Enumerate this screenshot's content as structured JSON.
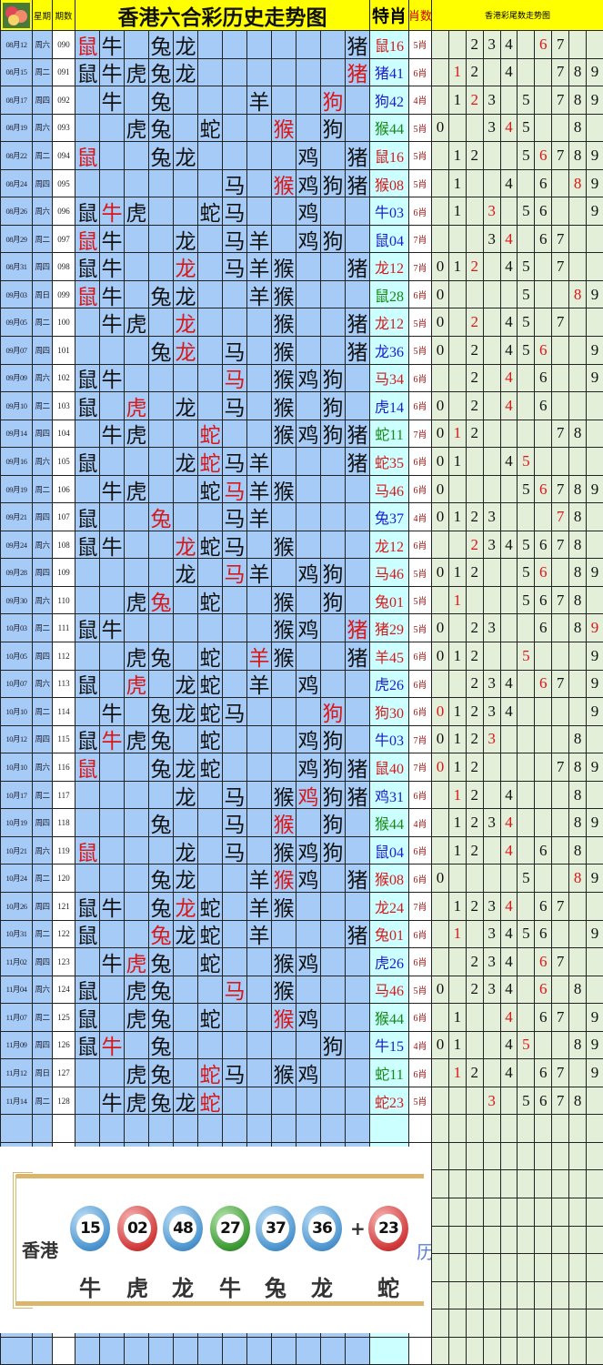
{
  "header": {
    "weekday_label": "星期",
    "period_label": "期数",
    "title": "香港六合彩历史走势图",
    "special_label": "特肖",
    "count_label": "肖数",
    "tails_title": "香港彩尾数走势图"
  },
  "zodiac_order": [
    "鼠",
    "牛",
    "虎",
    "兔",
    "龙",
    "蛇",
    "马",
    "羊",
    "猴",
    "鸡",
    "狗",
    "猪"
  ],
  "colors": {
    "red": "#d81818",
    "blue": "#1a1ad0",
    "green": "#118a11",
    "header": "#ffff00",
    "zodiac_bg": "#a6cbf6",
    "tails_bg": "#e3efd9"
  },
  "rows": [
    {
      "date": "08月12",
      "weekday": "周六",
      "period": "090",
      "zodiacs": [
        "鼠",
        "牛",
        "兔",
        "龙",
        "猪"
      ],
      "special": "鼠16",
      "color": "red",
      "count": "5肖",
      "tails": [
        2,
        3,
        4,
        6,
        7
      ]
    },
    {
      "date": "08月15",
      "weekday": "周二",
      "period": "091",
      "zodiacs": [
        "鼠",
        "牛",
        "虎",
        "兔",
        "龙",
        "猪"
      ],
      "special": "猪41",
      "color": "blue",
      "count": "6肖",
      "tails": [
        1,
        2,
        4,
        7,
        8,
        9
      ]
    },
    {
      "date": "08月17",
      "weekday": "周四",
      "period": "092",
      "zodiacs": [
        "牛",
        "兔",
        "羊",
        "狗"
      ],
      "special": "狗42",
      "color": "blue",
      "count": "4肖",
      "tails": [
        1,
        2,
        3,
        5,
        7,
        8,
        9
      ]
    },
    {
      "date": "08月19",
      "weekday": "周六",
      "period": "093",
      "zodiacs": [
        "虎",
        "兔",
        "蛇",
        "猴",
        "狗"
      ],
      "special": "猴44",
      "color": "green",
      "count": "5肖",
      "tails": [
        0,
        3,
        4,
        5,
        8
      ]
    },
    {
      "date": "08月22",
      "weekday": "周二",
      "period": "094",
      "zodiacs": [
        "鼠",
        "兔",
        "龙",
        "鸡",
        "猪"
      ],
      "special": "鼠16",
      "color": "red",
      "count": "5肖",
      "tails": [
        1,
        2,
        5,
        6,
        7,
        8,
        9
      ]
    },
    {
      "date": "08月24",
      "weekday": "周四",
      "period": "095",
      "zodiacs": [
        "马",
        "猴",
        "鸡",
        "狗",
        "猪"
      ],
      "special": "猴08",
      "color": "red",
      "count": "5肖",
      "tails": [
        1,
        4,
        6,
        8,
        9
      ]
    },
    {
      "date": "08月26",
      "weekday": "周六",
      "period": "096",
      "zodiacs": [
        "鼠",
        "牛",
        "虎",
        "蛇",
        "马",
        "鸡"
      ],
      "special": "牛03",
      "color": "blue",
      "count": "6肖",
      "tails": [
        1,
        3,
        5,
        6,
        9
      ]
    },
    {
      "date": "08月29",
      "weekday": "周二",
      "period": "097",
      "zodiacs": [
        "鼠",
        "牛",
        "龙",
        "马",
        "羊",
        "鸡",
        "狗"
      ],
      "special": "鼠04",
      "color": "blue",
      "count": "7肖",
      "tails": [
        3,
        4,
        6,
        7
      ]
    },
    {
      "date": "08月31",
      "weekday": "周四",
      "period": "098",
      "zodiacs": [
        "鼠",
        "牛",
        "龙",
        "马",
        "羊",
        "猴",
        "猪"
      ],
      "special": "龙12",
      "color": "red",
      "count": "7肖",
      "tails": [
        0,
        1,
        2,
        4,
        5,
        7
      ]
    },
    {
      "date": "09月03",
      "weekday": "周日",
      "period": "099",
      "zodiacs": [
        "鼠",
        "牛",
        "兔",
        "龙",
        "羊",
        "猴"
      ],
      "special": "鼠28",
      "color": "green",
      "count": "6肖",
      "tails": [
        0,
        5,
        8,
        9
      ]
    },
    {
      "date": "09月05",
      "weekday": "周二",
      "period": "100",
      "zodiacs": [
        "牛",
        "虎",
        "龙",
        "猴",
        "猪"
      ],
      "special": "龙12",
      "color": "red",
      "count": "5肖",
      "tails": [
        0,
        2,
        4,
        5,
        7
      ]
    },
    {
      "date": "09月07",
      "weekday": "周四",
      "period": "101",
      "zodiacs": [
        "兔",
        "龙",
        "马",
        "猴",
        "猪"
      ],
      "special": "龙36",
      "color": "blue",
      "count": "5肖",
      "tails": [
        0,
        2,
        4,
        5,
        6,
        9
      ]
    },
    {
      "date": "09月09",
      "weekday": "周六",
      "period": "102",
      "zodiacs": [
        "鼠",
        "牛",
        "马",
        "猴",
        "鸡",
        "狗"
      ],
      "special": "马34",
      "color": "red",
      "count": "6肖",
      "tails": [
        2,
        4,
        6,
        9
      ]
    },
    {
      "date": "09月10",
      "weekday": "周二",
      "period": "103",
      "zodiacs": [
        "鼠",
        "虎",
        "龙",
        "马",
        "猴",
        "狗"
      ],
      "special": "虎14",
      "color": "blue",
      "count": "6肖",
      "tails": [
        0,
        2,
        4,
        6
      ]
    },
    {
      "date": "09月14",
      "weekday": "周四",
      "period": "104",
      "zodiacs": [
        "牛",
        "虎",
        "蛇",
        "猴",
        "鸡",
        "狗",
        "猪"
      ],
      "special": "蛇11",
      "color": "green",
      "count": "7肖",
      "tails": [
        0,
        1,
        2,
        7,
        8
      ]
    },
    {
      "date": "09月16",
      "weekday": "周六",
      "period": "105",
      "zodiacs": [
        "鼠",
        "龙",
        "蛇",
        "马",
        "羊",
        "猪"
      ],
      "special": "蛇35",
      "color": "red",
      "count": "6肖",
      "tails": [
        0,
        1,
        4,
        5
      ]
    },
    {
      "date": "09月19",
      "weekday": "周二",
      "period": "106",
      "zodiacs": [
        "牛",
        "虎",
        "蛇",
        "马",
        "羊",
        "猴"
      ],
      "special": "马46",
      "color": "red",
      "count": "6肖",
      "tails": [
        0,
        5,
        6,
        7,
        8,
        9
      ]
    },
    {
      "date": "09月21",
      "weekday": "周四",
      "period": "107",
      "zodiacs": [
        "鼠",
        "兔",
        "马",
        "羊"
      ],
      "special": "兔37",
      "color": "blue",
      "count": "4肖",
      "tails": [
        0,
        1,
        2,
        3,
        7,
        8
      ]
    },
    {
      "date": "09月24",
      "weekday": "周六",
      "period": "108",
      "zodiacs": [
        "鼠",
        "牛",
        "龙",
        "蛇",
        "马",
        "猴"
      ],
      "special": "龙12",
      "color": "red",
      "count": "6肖",
      "tails": [
        2,
        3,
        4,
        5,
        6,
        7,
        8
      ]
    },
    {
      "date": "09月28",
      "weekday": "周四",
      "period": "109",
      "zodiacs": [
        "龙",
        "马",
        "羊",
        "鸡",
        "狗"
      ],
      "special": "马46",
      "color": "red",
      "count": "5肖",
      "tails": [
        0,
        1,
        2,
        5,
        6,
        8,
        9
      ]
    },
    {
      "date": "09月30",
      "weekday": "周六",
      "period": "110",
      "zodiacs": [
        "虎",
        "兔",
        "蛇",
        "猴",
        "狗"
      ],
      "special": "兔01",
      "color": "red",
      "count": "5肖",
      "tails": [
        1,
        5,
        6,
        7,
        8
      ]
    },
    {
      "date": "10月03",
      "weekday": "周二",
      "period": "111",
      "zodiacs": [
        "鼠",
        "牛",
        "猴",
        "鸡",
        "猪"
      ],
      "special": "猪29",
      "color": "red",
      "count": "5肖",
      "tails": [
        0,
        2,
        3,
        6,
        8,
        9
      ]
    },
    {
      "date": "10月05",
      "weekday": "周四",
      "period": "112",
      "zodiacs": [
        "虎",
        "兔",
        "蛇",
        "羊",
        "猴",
        "猪"
      ],
      "special": "羊45",
      "color": "red",
      "count": "6肖",
      "tails": [
        0,
        1,
        2,
        5,
        9
      ]
    },
    {
      "date": "10月07",
      "weekday": "周六",
      "period": "113",
      "zodiacs": [
        "鼠",
        "虎",
        "龙",
        "蛇",
        "羊",
        "鸡"
      ],
      "special": "虎26",
      "color": "blue",
      "count": "6肖",
      "tails": [
        2,
        3,
        4,
        6,
        7,
        9
      ]
    },
    {
      "date": "10月10",
      "weekday": "周二",
      "period": "114",
      "zodiacs": [
        "牛",
        "兔",
        "龙",
        "蛇",
        "马",
        "狗"
      ],
      "special": "狗30",
      "color": "red",
      "count": "6肖",
      "tails": [
        0,
        1,
        2,
        3,
        4,
        9
      ]
    },
    {
      "date": "10月12",
      "weekday": "周四",
      "period": "115",
      "zodiacs": [
        "鼠",
        "牛",
        "虎",
        "兔",
        "蛇",
        "鸡",
        "狗"
      ],
      "special": "牛03",
      "color": "blue",
      "count": "7肖",
      "tails": [
        0,
        1,
        2,
        3,
        8
      ]
    },
    {
      "date": "10月10",
      "weekday": "周六",
      "period": "116",
      "zodiacs": [
        "鼠",
        "兔",
        "龙",
        "蛇",
        "鸡",
        "狗",
        "猪"
      ],
      "special": "鼠40",
      "color": "red",
      "count": "7肖",
      "tails": [
        0,
        1,
        2,
        7,
        8,
        9
      ]
    },
    {
      "date": "10月17",
      "weekday": "周二",
      "period": "117",
      "zodiacs": [
        "龙",
        "马",
        "猴",
        "鸡",
        "狗",
        "猪"
      ],
      "special": "鸡31",
      "color": "blue",
      "count": "6肖",
      "tails": [
        1,
        2,
        4,
        8
      ]
    },
    {
      "date": "10月19",
      "weekday": "周四",
      "period": "118",
      "zodiacs": [
        "兔",
        "马",
        "猴",
        "狗"
      ],
      "special": "猴44",
      "color": "green",
      "count": "4肖",
      "tails": [
        1,
        2,
        3,
        4,
        8,
        9
      ]
    },
    {
      "date": "10月21",
      "weekday": "周六",
      "period": "119",
      "zodiacs": [
        "鼠",
        "龙",
        "马",
        "猴",
        "鸡",
        "狗"
      ],
      "special": "鼠04",
      "color": "blue",
      "count": "6肖",
      "tails": [
        1,
        2,
        4,
        6,
        8
      ]
    },
    {
      "date": "10月24",
      "weekday": "周二",
      "period": "120",
      "zodiacs": [
        "兔",
        "龙",
        "羊",
        "猴",
        "鸡",
        "猪"
      ],
      "special": "猴08",
      "color": "red",
      "count": "6肖",
      "tails": [
        0,
        5,
        8,
        9
      ]
    },
    {
      "date": "10月26",
      "weekday": "周四",
      "period": "121",
      "zodiacs": [
        "鼠",
        "牛",
        "兔",
        "龙",
        "蛇",
        "羊",
        "猴"
      ],
      "special": "龙24",
      "color": "red",
      "count": "7肖",
      "tails": [
        1,
        2,
        3,
        4,
        6,
        7
      ]
    },
    {
      "date": "10月31",
      "weekday": "周二",
      "period": "122",
      "zodiacs": [
        "鼠",
        "兔",
        "龙",
        "蛇",
        "羊",
        "猪"
      ],
      "special": "兔01",
      "color": "red",
      "count": "6肖",
      "tails": [
        1,
        3,
        4,
        5,
        6,
        9
      ]
    },
    {
      "date": "11月02",
      "weekday": "周四",
      "period": "123",
      "zodiacs": [
        "牛",
        "虎",
        "兔",
        "蛇",
        "猴",
        "鸡"
      ],
      "special": "虎26",
      "color": "blue",
      "count": "6肖",
      "tails": [
        2,
        3,
        4,
        6,
        7
      ]
    },
    {
      "date": "11月04",
      "weekday": "周六",
      "period": "124",
      "zodiacs": [
        "鼠",
        "虎",
        "兔",
        "马",
        "猴"
      ],
      "special": "马46",
      "color": "red",
      "count": "5肖",
      "tails": [
        0,
        2,
        3,
        4,
        6,
        8
      ]
    },
    {
      "date": "11月07",
      "weekday": "周二",
      "period": "125",
      "zodiacs": [
        "鼠",
        "虎",
        "兔",
        "蛇",
        "猴",
        "鸡"
      ],
      "special": "猴44",
      "color": "green",
      "count": "6肖",
      "tails": [
        1,
        4,
        6,
        7,
        9
      ]
    },
    {
      "date": "11月09",
      "weekday": "周四",
      "period": "126",
      "zodiacs": [
        "鼠",
        "牛",
        "兔",
        "狗"
      ],
      "special": "牛15",
      "color": "blue",
      "count": "4肖",
      "tails": [
        0,
        1,
        4,
        5,
        8,
        9
      ]
    },
    {
      "date": "11月12",
      "weekday": "周日",
      "period": "127",
      "zodiacs": [
        "虎",
        "兔",
        "蛇",
        "马",
        "猴",
        "鸡"
      ],
      "special": "蛇11",
      "color": "green",
      "count": "6肖",
      "tails": [
        1,
        2,
        4,
        6,
        7,
        9
      ]
    },
    {
      "date": "11月14",
      "weekday": "周二",
      "period": "128",
      "zodiacs": [
        "牛",
        "虎",
        "兔",
        "龙",
        "蛇"
      ],
      "special": "蛇23",
      "color": "red",
      "count": "5肖",
      "tails": [
        3,
        5,
        6,
        7,
        8
      ]
    }
  ],
  "banner": {
    "region": "香港",
    "balls": [
      {
        "number": "15",
        "zodiac": "牛",
        "color": "blue"
      },
      {
        "number": "02",
        "zodiac": "虎",
        "color": "red"
      },
      {
        "number": "48",
        "zodiac": "龙",
        "color": "blue"
      },
      {
        "number": "27",
        "zodiac": "牛",
        "color": "green"
      },
      {
        "number": "37",
        "zodiac": "兔",
        "color": "blue"
      },
      {
        "number": "36",
        "zodiac": "龙",
        "color": "blue"
      }
    ],
    "plus": "+",
    "special_ball": {
      "number": "23",
      "zodiac": "蛇",
      "color": "red"
    },
    "side_text": "历"
  }
}
